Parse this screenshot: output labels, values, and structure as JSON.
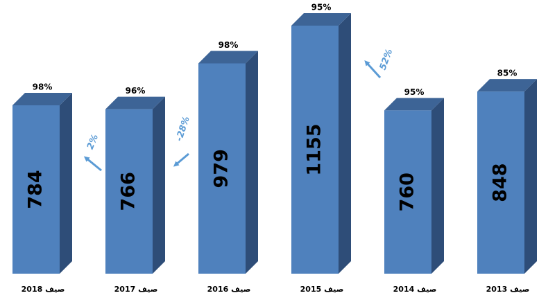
{
  "chart_data": {
    "type": "bar3d",
    "categories": [
      "صيف 2018",
      "صيف 2017",
      "صيف 2016",
      "صيف 2015",
      "صيف 2014",
      "صيف 2013"
    ],
    "values": [
      784,
      766,
      979,
      1155,
      760,
      848
    ],
    "top_labels": [
      "98%",
      "96%",
      "98%",
      "95%",
      "95%",
      "85%"
    ],
    "changes": [
      "2%",
      "-28%",
      "52%"
    ],
    "color": "#4f81bd"
  }
}
